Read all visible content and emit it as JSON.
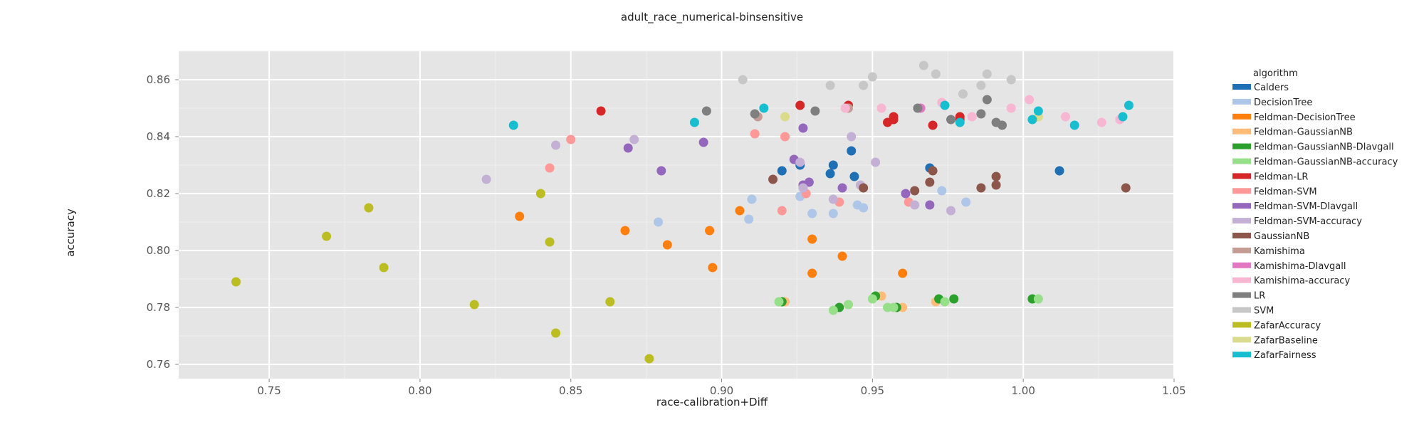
{
  "chart_data": {
    "type": "scatter",
    "title": "adult_race_numerical-binsensitive",
    "xlabel": "race-calibration+Diff",
    "ylabel": "accuracy",
    "xlim": [
      0.72,
      1.05
    ],
    "ylim": [
      0.755,
      0.87
    ],
    "xticks": [
      "0.75",
      "0.80",
      "0.85",
      "0.90",
      "0.95",
      "1.00",
      "1.05"
    ],
    "yticks": [
      "0.76",
      "0.78",
      "0.80",
      "0.82",
      "0.84",
      "0.86"
    ],
    "grid": true,
    "legend_title": "algorithm",
    "legend_position": "right",
    "series": [
      {
        "name": "Calders",
        "color": "#1f6fb4",
        "points": [
          [
            0.92,
            0.828
          ],
          [
            0.926,
            0.83
          ],
          [
            0.937,
            0.83
          ],
          [
            0.936,
            0.827
          ],
          [
            0.943,
            0.835
          ],
          [
            0.944,
            0.826
          ],
          [
            0.969,
            0.829
          ],
          [
            1.012,
            0.828
          ]
        ]
      },
      {
        "name": "DecisionTree",
        "color": "#aec7e8",
        "points": [
          [
            0.879,
            0.81
          ],
          [
            0.91,
            0.818
          ],
          [
            0.909,
            0.811
          ],
          [
            0.93,
            0.813
          ],
          [
            0.926,
            0.819
          ],
          [
            0.937,
            0.813
          ],
          [
            0.945,
            0.816
          ],
          [
            0.947,
            0.815
          ],
          [
            0.973,
            0.821
          ],
          [
            0.981,
            0.817
          ]
        ]
      },
      {
        "name": "Feldman-DecisionTree",
        "color": "#ff7f0e",
        "points": [
          [
            0.833,
            0.812
          ],
          [
            0.868,
            0.807
          ],
          [
            0.882,
            0.802
          ],
          [
            0.896,
            0.807
          ],
          [
            0.897,
            0.794
          ],
          [
            0.906,
            0.814
          ],
          [
            0.93,
            0.804
          ],
          [
            0.93,
            0.792
          ],
          [
            0.94,
            0.798
          ],
          [
            0.96,
            0.792
          ]
        ]
      },
      {
        "name": "Feldman-GaussianNB",
        "color": "#ffbb78",
        "points": [
          [
            0.921,
            0.782
          ],
          [
            0.942,
            0.781
          ],
          [
            0.953,
            0.784
          ],
          [
            0.96,
            0.78
          ],
          [
            0.971,
            0.782
          ]
        ]
      },
      {
        "name": "Feldman-GaussianNB-DIavgall",
        "color": "#2ca02c",
        "points": [
          [
            0.92,
            0.782
          ],
          [
            0.939,
            0.78
          ],
          [
            0.951,
            0.784
          ],
          [
            0.958,
            0.78
          ],
          [
            0.972,
            0.783
          ],
          [
            0.977,
            0.783
          ],
          [
            1.003,
            0.783
          ]
        ]
      },
      {
        "name": "Feldman-GaussianNB-accuracy",
        "color": "#98df8a",
        "points": [
          [
            0.919,
            0.782
          ],
          [
            0.937,
            0.779
          ],
          [
            0.942,
            0.781
          ],
          [
            0.95,
            0.783
          ],
          [
            0.955,
            0.78
          ],
          [
            0.957,
            0.78
          ],
          [
            0.974,
            0.782
          ],
          [
            1.005,
            0.783
          ]
        ]
      },
      {
        "name": "Feldman-LR",
        "color": "#d62728",
        "points": [
          [
            0.86,
            0.849
          ],
          [
            0.926,
            0.851
          ],
          [
            0.942,
            0.851
          ],
          [
            0.955,
            0.845
          ],
          [
            0.957,
            0.847
          ],
          [
            0.957,
            0.846
          ],
          [
            0.97,
            0.844
          ],
          [
            0.979,
            0.846
          ],
          [
            0.979,
            0.847
          ]
        ]
      },
      {
        "name": "Feldman-SVM",
        "color": "#ff9896",
        "points": [
          [
            0.843,
            0.829
          ],
          [
            0.85,
            0.839
          ],
          [
            0.911,
            0.841
          ],
          [
            0.92,
            0.814
          ],
          [
            0.921,
            0.84
          ],
          [
            0.928,
            0.82
          ],
          [
            0.939,
            0.817
          ],
          [
            0.962,
            0.817
          ]
        ]
      },
      {
        "name": "Feldman-SVM-DIavgall",
        "color": "#9467bd",
        "points": [
          [
            0.869,
            0.836
          ],
          [
            0.88,
            0.828
          ],
          [
            0.894,
            0.838
          ],
          [
            0.924,
            0.832
          ],
          [
            0.927,
            0.843
          ],
          [
            0.927,
            0.823
          ],
          [
            0.929,
            0.824
          ],
          [
            0.94,
            0.822
          ],
          [
            0.961,
            0.82
          ],
          [
            0.969,
            0.816
          ]
        ]
      },
      {
        "name": "Feldman-SVM-accuracy",
        "color": "#c5b0d5",
        "points": [
          [
            0.822,
            0.825
          ],
          [
            0.845,
            0.837
          ],
          [
            0.871,
            0.839
          ],
          [
            0.926,
            0.831
          ],
          [
            0.927,
            0.822
          ],
          [
            0.937,
            0.818
          ],
          [
            0.943,
            0.84
          ],
          [
            0.946,
            0.823
          ],
          [
            0.951,
            0.831
          ],
          [
            0.964,
            0.816
          ],
          [
            0.976,
            0.814
          ]
        ]
      },
      {
        "name": "GaussianNB",
        "color": "#8c564b",
        "points": [
          [
            0.917,
            0.825
          ],
          [
            0.947,
            0.822
          ],
          [
            0.964,
            0.821
          ],
          [
            0.969,
            0.824
          ],
          [
            0.97,
            0.828
          ],
          [
            0.986,
            0.822
          ],
          [
            0.991,
            0.826
          ],
          [
            0.991,
            0.823
          ],
          [
            1.034,
            0.822
          ]
        ]
      },
      {
        "name": "Kamishima",
        "color": "#c49c94",
        "points": [
          [
            0.912,
            0.847
          ],
          [
            0.942,
            0.85
          ]
        ]
      },
      {
        "name": "Kamishima-DIavgall",
        "color": "#e377c2",
        "points": [
          [
            0.966,
            0.85
          ]
        ]
      },
      {
        "name": "Kamishima-accuracy",
        "color": "#f7b6d2",
        "points": [
          [
            0.941,
            0.85
          ],
          [
            0.953,
            0.85
          ],
          [
            0.973,
            0.852
          ],
          [
            0.983,
            0.847
          ],
          [
            0.996,
            0.85
          ],
          [
            1.002,
            0.853
          ],
          [
            1.014,
            0.847
          ],
          [
            1.026,
            0.845
          ],
          [
            1.032,
            0.846
          ]
        ]
      },
      {
        "name": "LR",
        "color": "#7f7f7f",
        "points": [
          [
            0.895,
            0.849
          ],
          [
            0.911,
            0.848
          ],
          [
            0.931,
            0.849
          ],
          [
            0.965,
            0.85
          ],
          [
            0.976,
            0.846
          ],
          [
            0.986,
            0.848
          ],
          [
            0.988,
            0.853
          ],
          [
            0.991,
            0.845
          ],
          [
            0.993,
            0.844
          ]
        ]
      },
      {
        "name": "SVM",
        "color": "#c7c7c7",
        "points": [
          [
            0.907,
            0.86
          ],
          [
            0.936,
            0.858
          ],
          [
            0.947,
            0.858
          ],
          [
            0.95,
            0.861
          ],
          [
            0.967,
            0.865
          ],
          [
            0.971,
            0.862
          ],
          [
            0.98,
            0.855
          ],
          [
            0.986,
            0.858
          ],
          [
            0.988,
            0.862
          ],
          [
            0.996,
            0.86
          ]
        ]
      },
      {
        "name": "ZafarAccuracy",
        "color": "#bcbd22",
        "points": [
          [
            0.739,
            0.789
          ],
          [
            0.769,
            0.805
          ],
          [
            0.783,
            0.815
          ],
          [
            0.788,
            0.794
          ],
          [
            0.818,
            0.781
          ],
          [
            0.84,
            0.82
          ],
          [
            0.843,
            0.803
          ],
          [
            0.845,
            0.771
          ],
          [
            0.863,
            0.782
          ],
          [
            0.876,
            0.762
          ]
        ]
      },
      {
        "name": "ZafarBaseline",
        "color": "#dbdb8d",
        "points": [
          [
            0.921,
            0.847
          ],
          [
            1.005,
            0.847
          ]
        ]
      },
      {
        "name": "ZafarFairness",
        "color": "#17becf",
        "points": [
          [
            0.831,
            0.844
          ],
          [
            0.891,
            0.845
          ],
          [
            0.914,
            0.85
          ],
          [
            0.974,
            0.851
          ],
          [
            0.979,
            0.845
          ],
          [
            1.003,
            0.846
          ],
          [
            1.005,
            0.849
          ],
          [
            1.017,
            0.844
          ],
          [
            1.033,
            0.847
          ],
          [
            1.035,
            0.851
          ]
        ]
      }
    ]
  }
}
